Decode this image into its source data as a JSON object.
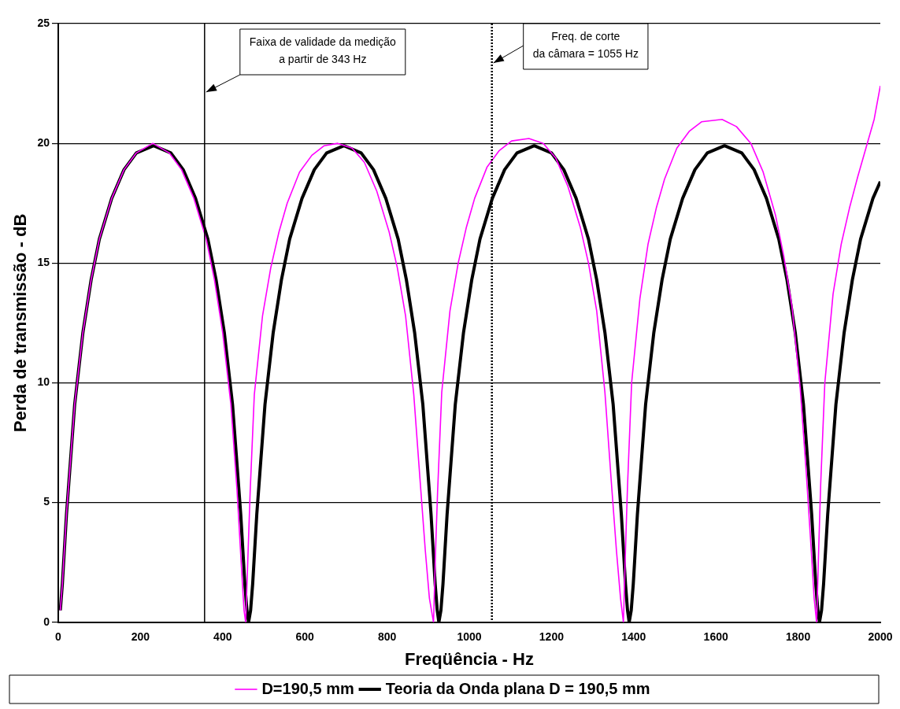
{
  "chart_data": {
    "type": "line",
    "xlabel": "Freqüência - Hz",
    "ylabel": "Perda de transmissão - dB",
    "xlim": [
      0,
      2000
    ],
    "xticks": [
      0,
      200,
      400,
      600,
      800,
      1000,
      1200,
      1400,
      1600,
      1800,
      2000
    ],
    "ylim": [
      0,
      25
    ],
    "yticks": [
      0,
      5,
      10,
      15,
      20,
      25
    ],
    "grid": "y",
    "legend": "bottom",
    "marker": "none",
    "line_style": "solid",
    "ref_lines": [
      {
        "axis": "x",
        "value": 356,
        "label": "Faixa de validade da medição\na partir de 343 Hz",
        "color": "#000000",
        "line_style": "solid"
      },
      {
        "axis": "x",
        "value": 1055,
        "label": "Freq. de corte\nda câmara = 1055 Hz",
        "color": "#000000",
        "line_style": "dotted"
      }
    ],
    "series": [
      {
        "name": "Teoria da Onda plana D = 190,5 mm",
        "color": "#000000",
        "x": [
          5,
          10,
          20,
          40,
          60,
          80,
          100,
          130,
          160,
          190,
          232,
          274,
          304,
          334,
          364,
          384,
          404,
          424,
          444,
          454,
          459,
          463,
          468,
          473,
          483,
          503,
          523,
          543,
          563,
          593,
          623,
          653,
          695,
          737,
          767,
          797,
          827,
          847,
          867,
          887,
          907,
          917,
          922,
          926,
          931,
          936,
          946,
          966,
          986,
          1006,
          1026,
          1056,
          1086,
          1116,
          1158,
          1200,
          1230,
          1260,
          1290,
          1310,
          1330,
          1350,
          1370,
          1380,
          1385,
          1389,
          1394,
          1399,
          1409,
          1429,
          1449,
          1469,
          1489,
          1519,
          1549,
          1579,
          1621,
          1663,
          1693,
          1723,
          1753,
          1773,
          1793,
          1813,
          1833,
          1843,
          1848,
          1852,
          1857,
          1862,
          1872,
          1892,
          1912,
          1932,
          1952,
          1982,
          2000
        ],
        "values": [
          0.5,
          1.6,
          4.5,
          9.1,
          12.1,
          14.3,
          16.0,
          17.7,
          18.9,
          19.6,
          19.9,
          19.6,
          18.9,
          17.7,
          16.0,
          14.3,
          12.1,
          9.1,
          4.5,
          1.6,
          0.5,
          0,
          0.5,
          1.6,
          4.5,
          9.1,
          12.1,
          14.3,
          16.0,
          17.7,
          18.9,
          19.6,
          19.9,
          19.6,
          18.9,
          17.7,
          16.0,
          14.3,
          12.1,
          9.1,
          4.5,
          1.6,
          0.5,
          0,
          0.5,
          1.6,
          4.5,
          9.1,
          12.1,
          14.3,
          16.0,
          17.7,
          18.9,
          19.6,
          19.9,
          19.6,
          18.9,
          17.7,
          16.0,
          14.3,
          12.1,
          9.1,
          4.5,
          1.6,
          0.5,
          0,
          0.5,
          1.6,
          4.5,
          9.1,
          12.1,
          14.3,
          16.0,
          17.7,
          18.9,
          19.6,
          19.9,
          19.6,
          18.9,
          17.7,
          16.0,
          14.3,
          12.1,
          9.1,
          4.5,
          1.6,
          0.5,
          0,
          0.5,
          1.6,
          4.5,
          9.1,
          12.1,
          14.3,
          16.0,
          17.7,
          18.4
        ]
      },
      {
        "name": "D=190,5 mm",
        "color": "#ff00ff",
        "x": [
          5,
          10,
          20,
          40,
          60,
          80,
          100,
          130,
          160,
          190,
          230,
          270,
          300,
          330,
          360,
          380,
          400,
          420,
          435,
          445,
          452,
          456,
          462,
          467,
          477,
          497,
          517,
          537,
          557,
          587,
          617,
          647,
          680,
          715,
          745,
          775,
          805,
          825,
          845,
          865,
          880,
          893,
          903,
          913,
          918,
          923,
          933,
          953,
          973,
          993,
          1013,
          1043,
          1073,
          1103,
          1145,
          1180,
          1210,
          1240,
          1270,
          1290,
          1310,
          1330,
          1345,
          1358,
          1368,
          1375,
          1380,
          1385,
          1395,
          1415,
          1435,
          1455,
          1475,
          1505,
          1535,
          1565,
          1615,
          1650,
          1685,
          1715,
          1745,
          1765,
          1785,
          1805,
          1820,
          1832,
          1839,
          1845,
          1850,
          1855,
          1865,
          1885,
          1905,
          1925,
          1945,
          1965,
          1985,
          2000
        ],
        "values": [
          0.5,
          1.6,
          4.5,
          9.1,
          12.1,
          14.3,
          16.0,
          17.7,
          18.9,
          19.6,
          20.0,
          19.6,
          18.9,
          17.7,
          16.0,
          14.3,
          12.1,
          9.1,
          5.5,
          2.5,
          0.5,
          0,
          3,
          5.5,
          9.5,
          12.8,
          14.8,
          16.3,
          17.5,
          18.8,
          19.5,
          19.9,
          20.0,
          19.8,
          19.2,
          18.0,
          16.3,
          14.8,
          12.8,
          9.5,
          6,
          3,
          1,
          0,
          3,
          5.5,
          9.6,
          13,
          15,
          16.5,
          17.7,
          19,
          19.7,
          20.1,
          20.2,
          20.0,
          19.4,
          18.2,
          16.5,
          15,
          13,
          9.6,
          6,
          3,
          1,
          0,
          3,
          5.7,
          10,
          13.5,
          15.8,
          17.3,
          18.5,
          19.8,
          20.5,
          20.9,
          21.0,
          20.7,
          20.0,
          18.8,
          17.0,
          15.3,
          13.2,
          9.8,
          6.2,
          3,
          1,
          0,
          3,
          5.8,
          10,
          13.7,
          15.8,
          17.3,
          18.6,
          19.8,
          21,
          22.4
        ]
      }
    ]
  }
}
